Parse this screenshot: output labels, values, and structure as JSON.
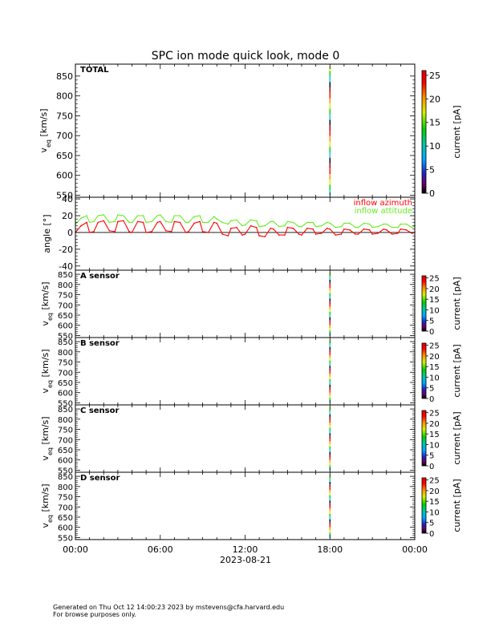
{
  "title": "SPC ion mode quick look, mode 0",
  "footer": {
    "line1": "Generated on Thu Oct 12 14:00:23 2023 by mstevens@cfa.harvard.edu",
    "line2": "For browse purposes only."
  },
  "x_axis": {
    "ticks": [
      "00:00",
      "06:00",
      "12:00",
      "18:00",
      "00:00"
    ],
    "tick_hours": [
      0,
      6,
      12,
      18,
      24
    ],
    "date_label": "2023-08-21"
  },
  "colorbar": {
    "label": "current [pA]",
    "range": [
      0,
      26
    ],
    "ticks": [
      0,
      5,
      10,
      15,
      20,
      25
    ]
  },
  "chart_data": [
    {
      "id": "total",
      "type": "heatmap",
      "panel_label": "TOTAL",
      "ylabel_main": "v",
      "ylabel_sub": "eq",
      "ylabel_unit": " [km/s]",
      "ylim": [
        545,
        880
      ],
      "yticks": [
        550,
        600,
        650,
        700,
        750,
        800,
        850
      ],
      "xlim": [
        0,
        24
      ],
      "streak_hour": 18.0
    },
    {
      "id": "angle",
      "type": "line",
      "ylabel": "angle [°]",
      "ylim": [
        -45,
        42
      ],
      "yticks": [
        -40,
        -20,
        0,
        20,
        40
      ],
      "xlim": [
        0,
        24
      ],
      "zero_line": true,
      "series": [
        {
          "name": "inflow azimuth",
          "color": "#ff0000",
          "x": [
            0.0,
            0.4,
            0.8,
            1.0,
            1.3,
            1.6,
            2.0,
            2.4,
            2.8,
            3.0,
            3.4,
            3.8,
            4.0,
            4.4,
            4.8,
            5.0,
            5.4,
            5.8,
            6.0,
            6.4,
            6.8,
            7.0,
            7.4,
            7.8,
            8.0,
            8.4,
            8.8,
            9.0,
            9.4,
            9.8,
            10.0,
            10.4,
            10.8,
            11.0,
            11.4,
            11.8,
            12.0,
            12.4,
            12.8,
            13.0,
            13.4,
            13.8,
            14.0,
            14.4,
            14.8,
            15.0,
            15.4,
            15.8,
            16.0,
            16.4,
            16.8,
            17.0,
            17.4,
            17.8,
            18.0,
            18.4,
            18.8,
            19.0,
            19.4,
            19.8,
            20.0,
            20.4,
            20.8,
            21.0,
            21.4,
            21.8,
            22.0,
            22.4,
            22.8,
            23.0,
            23.4,
            23.8,
            24.0
          ],
          "values": [
            0,
            8,
            12,
            0,
            1,
            12,
            14,
            2,
            1,
            13,
            14,
            1,
            0,
            13,
            12,
            0,
            1,
            12,
            13,
            2,
            1,
            13,
            12,
            0,
            1,
            11,
            13,
            1,
            0,
            12,
            11,
            -2,
            -4,
            5,
            6,
            -3,
            -2,
            8,
            6,
            -4,
            -5,
            5,
            4,
            -3,
            -3,
            6,
            5,
            -2,
            -3,
            5,
            4,
            -2,
            -1,
            5,
            4,
            -3,
            -2,
            4,
            3,
            -2,
            -2,
            4,
            3,
            -2,
            -1,
            4,
            3,
            -2,
            -1,
            4,
            3,
            -1,
            0
          ]
        },
        {
          "name": "inflow attitude",
          "color": "#66ee22",
          "x": [
            0.0,
            0.4,
            0.8,
            1.0,
            1.3,
            1.6,
            2.0,
            2.4,
            2.8,
            3.0,
            3.4,
            3.8,
            4.0,
            4.4,
            4.8,
            5.0,
            5.4,
            5.8,
            6.0,
            6.4,
            6.8,
            7.0,
            7.4,
            7.8,
            8.0,
            8.4,
            8.8,
            9.0,
            9.4,
            9.8,
            10.0,
            10.4,
            10.8,
            11.0,
            11.4,
            11.8,
            12.0,
            12.4,
            12.8,
            13.0,
            13.4,
            13.8,
            14.0,
            14.4,
            14.8,
            15.0,
            15.4,
            15.8,
            16.0,
            16.4,
            16.8,
            17.0,
            17.4,
            17.8,
            18.0,
            18.4,
            18.8,
            19.0,
            19.4,
            19.8,
            20.0,
            20.4,
            20.8,
            21.0,
            21.4,
            21.8,
            22.0,
            22.4,
            22.8,
            23.0,
            23.4,
            23.8,
            24.0
          ],
          "values": [
            10,
            17,
            20,
            12,
            13,
            20,
            21,
            12,
            13,
            21,
            20,
            12,
            12,
            20,
            20,
            12,
            13,
            20,
            21,
            13,
            12,
            20,
            20,
            12,
            12,
            19,
            20,
            12,
            12,
            19,
            16,
            12,
            10,
            14,
            15,
            8,
            9,
            15,
            14,
            7,
            8,
            13,
            13,
            7,
            8,
            13,
            12,
            7,
            7,
            12,
            12,
            7,
            8,
            12,
            11,
            6,
            7,
            11,
            11,
            6,
            6,
            11,
            10,
            6,
            7,
            10,
            10,
            6,
            6,
            10,
            10,
            6,
            8
          ]
        }
      ]
    },
    {
      "id": "a_sensor",
      "type": "heatmap",
      "panel_label": "A sensor",
      "ylabel_main": "v",
      "ylabel_sub": "eq",
      "ylabel_unit": " [km/s]",
      "ylim": [
        540,
        870
      ],
      "yticks": [
        550,
        600,
        650,
        700,
        750,
        800,
        850
      ],
      "xlim": [
        0,
        24
      ],
      "streak_hour": 18.0
    },
    {
      "id": "b_sensor",
      "type": "heatmap",
      "panel_label": "B sensor",
      "ylabel_main": "v",
      "ylabel_sub": "eq",
      "ylabel_unit": " [km/s]",
      "ylim": [
        540,
        870
      ],
      "yticks": [
        550,
        600,
        650,
        700,
        750,
        800,
        850
      ],
      "xlim": [
        0,
        24
      ],
      "streak_hour": 18.0
    },
    {
      "id": "c_sensor",
      "type": "heatmap",
      "panel_label": "C sensor",
      "ylabel_main": "v",
      "ylabel_sub": "eq",
      "ylabel_unit": " [km/s]",
      "ylim": [
        540,
        870
      ],
      "yticks": [
        550,
        600,
        650,
        700,
        750,
        800,
        850
      ],
      "xlim": [
        0,
        24
      ],
      "streak_hour": 18.0
    },
    {
      "id": "d_sensor",
      "type": "heatmap",
      "panel_label": "D sensor",
      "ylabel_main": "v",
      "ylabel_sub": "eq",
      "ylabel_unit": " [km/s]",
      "ylim": [
        540,
        870
      ],
      "yticks": [
        550,
        600,
        650,
        700,
        750,
        800,
        850
      ],
      "xlim": [
        0,
        24
      ],
      "streak_hour": 18.0
    }
  ]
}
